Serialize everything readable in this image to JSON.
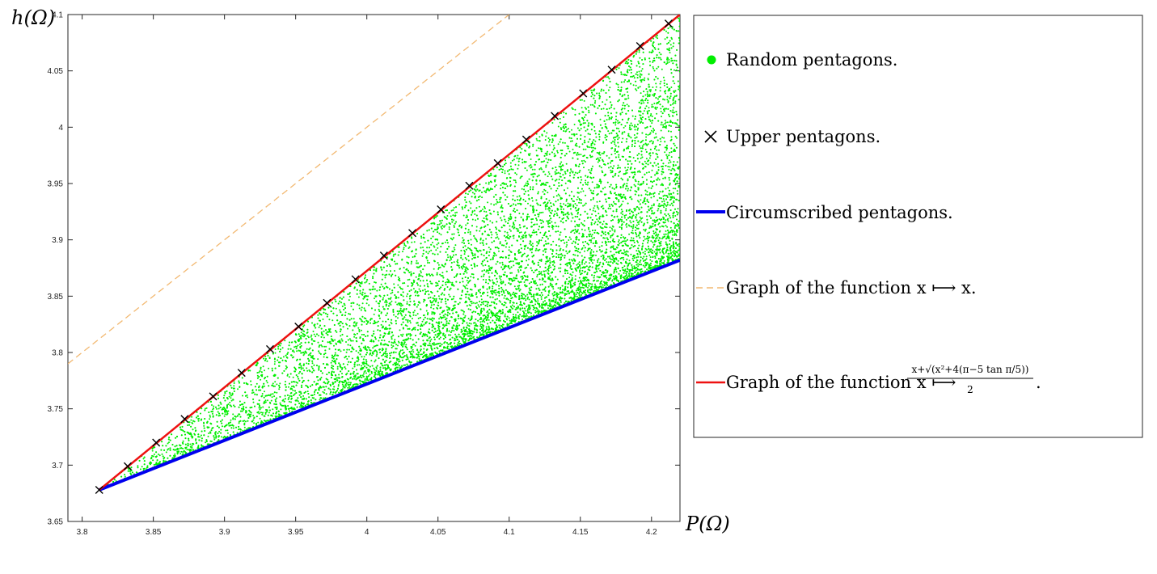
{
  "chart_data": {
    "type": "scatter",
    "xlabel": "P(Ω)",
    "ylabel": "h(Ω)",
    "xlim": [
      3.79,
      4.22
    ],
    "ylim": [
      3.65,
      4.1
    ],
    "grid": false,
    "legend_position": "right-outside",
    "xticks": [
      3.8,
      3.85,
      3.9,
      3.95,
      4,
      4.05,
      4.1,
      4.15,
      4.2
    ],
    "xtick_labels": [
      "3.8",
      "3.85",
      "3.9",
      "3.95",
      "4",
      "4.05",
      "4.1",
      "4.15",
      "4.2"
    ],
    "yticks": [
      3.65,
      3.7,
      3.75,
      3.8,
      3.85,
      3.9,
      3.95,
      4,
      4.05,
      4.1
    ],
    "ytick_labels": [
      "3.65",
      "3.7",
      "3.75",
      "3.8",
      "3.85",
      "3.9",
      "3.95",
      "4",
      "4.05",
      "4.1"
    ],
    "series": [
      {
        "name": "Random pentagons.",
        "kind": "scatter",
        "color": "#00ee00",
        "region": {
          "x_range": [
            3.812,
            4.22
          ],
          "lower_line": [
            [
              3.812,
              3.678
            ],
            [
              4.22,
              3.882
            ]
          ],
          "upper_line": [
            [
              3.812,
              3.678
            ],
            [
              4.22,
              4.1
            ]
          ]
        }
      },
      {
        "name": "Upper pentagons.",
        "kind": "marker-x",
        "color": "#000000",
        "x": [
          3.812,
          3.832,
          3.852,
          3.872,
          3.892,
          3.912,
          3.932,
          3.952,
          3.972,
          3.992,
          4.012,
          4.032,
          4.052,
          4.072,
          4.092,
          4.112,
          4.132,
          4.152,
          4.172,
          4.192,
          4.212
        ],
        "y": [
          3.678,
          3.699,
          3.72,
          3.741,
          3.761,
          3.782,
          3.803,
          3.823,
          3.844,
          3.865,
          3.886,
          3.906,
          3.927,
          3.948,
          3.968,
          3.989,
          4.01,
          4.03,
          4.051,
          4.072,
          4.092
        ]
      },
      {
        "name": "Circumscribed pentagons.",
        "kind": "line",
        "color": "#0000ee",
        "x": [
          3.812,
          4.22
        ],
        "y": [
          3.678,
          3.882
        ]
      },
      {
        "name": "Graph of the function x ⟼ x.",
        "kind": "dashed-line",
        "color": "#f2b870",
        "x": [
          3.79,
          4.1
        ],
        "y": [
          3.79,
          4.1
        ]
      },
      {
        "name": "Graph of the function x ⟼ (x+√(x²+4(π−5 tan π/5)))/2.",
        "kind": "line",
        "color": "#ee1111",
        "x": [
          3.812,
          4.22
        ],
        "y": [
          3.678,
          4.1
        ]
      }
    ]
  },
  "legend": {
    "random": "Random pentagons.",
    "upper": "Upper pentagons.",
    "circumscribed": "Circumscribed pentagons.",
    "identity": "Graph of the function x ⟼ x.",
    "formula_prefix": "Graph of the function x ⟼",
    "formula_numerator": "x+√(x²+4(π−5 tan π/5))",
    "formula_denominator": "2",
    "formula_suffix": "."
  }
}
